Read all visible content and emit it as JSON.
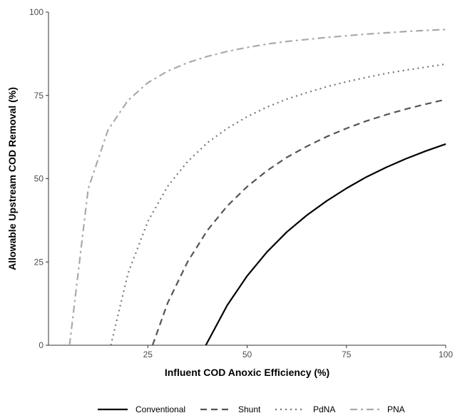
{
  "chart_data": {
    "type": "line",
    "xlabel": "Influent COD Anoxic Efficiency (%)",
    "ylabel": "Allowable Upstream COD Removal (%)",
    "xlim": [
      0,
      100
    ],
    "ylim": [
      0,
      100
    ],
    "x_ticks": [
      25,
      50,
      75,
      100
    ],
    "y_ticks": [
      0,
      25,
      50,
      75,
      100
    ],
    "grid": false,
    "legend_position": "bottom",
    "series": [
      {
        "name": "Conventional",
        "color": "#000000",
        "dash": "solid",
        "x": [
          39.6,
          45,
          50,
          55,
          60,
          65,
          70,
          75,
          80,
          85,
          90,
          95,
          100
        ],
        "y": [
          0,
          12,
          20.8,
          28,
          34,
          39,
          43.3,
          47.1,
          50.5,
          53.4,
          56,
          58.3,
          60.4
        ]
      },
      {
        "name": "Shunt",
        "color": "#555555",
        "dash": "dashed",
        "x": [
          26.2,
          30,
          35,
          40,
          45,
          50,
          55,
          60,
          65,
          70,
          75,
          80,
          85,
          90,
          95,
          100
        ],
        "y": [
          0,
          12.7,
          25,
          34.5,
          41.8,
          47.6,
          52.4,
          56.4,
          59.7,
          62.6,
          65.1,
          67.3,
          69.2,
          70.9,
          72.4,
          73.8
        ]
      },
      {
        "name": "PdNA",
        "color": "#777777",
        "dash": "dotted",
        "x": [
          15.7,
          20,
          25,
          30,
          35,
          40,
          45,
          50,
          55,
          60,
          65,
          70,
          75,
          80,
          85,
          90,
          95,
          100
        ],
        "y": [
          0,
          21.5,
          37.2,
          47.7,
          55.1,
          60.8,
          65.1,
          68.6,
          71.5,
          73.9,
          75.8,
          77.6,
          79.1,
          80.4,
          81.6,
          82.6,
          83.5,
          84.4
        ]
      },
      {
        "name": "PNA",
        "color": "#aaaaaa",
        "dash": "dashdot",
        "x": [
          5.3,
          10,
          15,
          20,
          25,
          30,
          35,
          40,
          45,
          50,
          55,
          60,
          65,
          70,
          75,
          80,
          85,
          90,
          95,
          100
        ],
        "y": [
          0,
          47,
          64.7,
          73.5,
          78.8,
          82.3,
          84.8,
          86.7,
          88.2,
          89.4,
          90.4,
          91.2,
          91.8,
          92.4,
          92.9,
          93.4,
          93.8,
          94.2,
          94.5,
          94.8
        ]
      }
    ]
  }
}
